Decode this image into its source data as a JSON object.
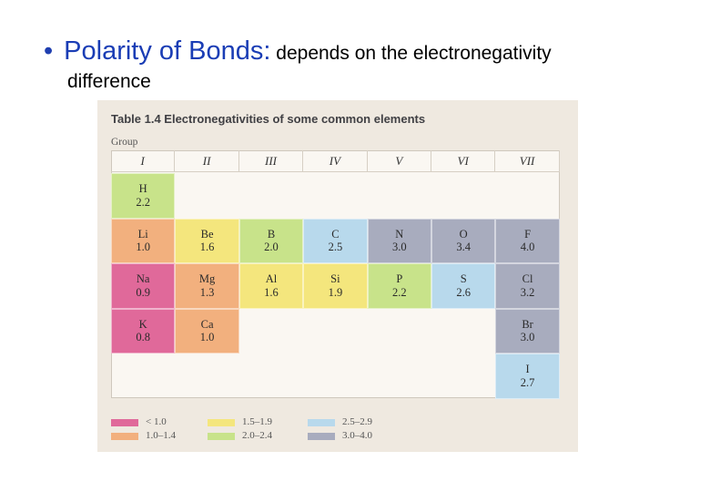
{
  "heading": {
    "bullet": "•",
    "term": "Polarity of Bonds:",
    "rest": " depends on the electronegativity",
    "continuation": "difference"
  },
  "table": {
    "title": "Table 1.4  Electronegativities of some common elements",
    "group_label": "Group",
    "groups": [
      "I",
      "II",
      "III",
      "IV",
      "V",
      "VI",
      "VII"
    ],
    "colors": {
      "lt1": "#e0699a",
      "r10_14": "#f2b07e",
      "r15_19": "#f4e67d",
      "r20_24": "#c8e38a",
      "r25_29": "#b8d9ec",
      "r30_40": "#a8acbe"
    },
    "cells": [
      {
        "row": 0,
        "col": 0,
        "symbol": "H",
        "value": "2.2",
        "range": "r20_24"
      },
      {
        "row": 1,
        "col": 0,
        "symbol": "Li",
        "value": "1.0",
        "range": "r10_14"
      },
      {
        "row": 1,
        "col": 1,
        "symbol": "Be",
        "value": "1.6",
        "range": "r15_19"
      },
      {
        "row": 1,
        "col": 2,
        "symbol": "B",
        "value": "2.0",
        "range": "r20_24"
      },
      {
        "row": 1,
        "col": 3,
        "symbol": "C",
        "value": "2.5",
        "range": "r25_29"
      },
      {
        "row": 1,
        "col": 4,
        "symbol": "N",
        "value": "3.0",
        "range": "r30_40"
      },
      {
        "row": 1,
        "col": 5,
        "symbol": "O",
        "value": "3.4",
        "range": "r30_40"
      },
      {
        "row": 1,
        "col": 6,
        "symbol": "F",
        "value": "4.0",
        "range": "r30_40"
      },
      {
        "row": 2,
        "col": 0,
        "symbol": "Na",
        "value": "0.9",
        "range": "lt1"
      },
      {
        "row": 2,
        "col": 1,
        "symbol": "Mg",
        "value": "1.3",
        "range": "r10_14"
      },
      {
        "row": 2,
        "col": 2,
        "symbol": "Al",
        "value": "1.6",
        "range": "r15_19"
      },
      {
        "row": 2,
        "col": 3,
        "symbol": "Si",
        "value": "1.9",
        "range": "r15_19"
      },
      {
        "row": 2,
        "col": 4,
        "symbol": "P",
        "value": "2.2",
        "range": "r20_24"
      },
      {
        "row": 2,
        "col": 5,
        "symbol": "S",
        "value": "2.6",
        "range": "r25_29"
      },
      {
        "row": 2,
        "col": 6,
        "symbol": "Cl",
        "value": "3.2",
        "range": "r30_40"
      },
      {
        "row": 3,
        "col": 0,
        "symbol": "K",
        "value": "0.8",
        "range": "lt1"
      },
      {
        "row": 3,
        "col": 1,
        "symbol": "Ca",
        "value": "1.0",
        "range": "r10_14"
      },
      {
        "row": 3,
        "col": 6,
        "symbol": "Br",
        "value": "3.0",
        "range": "r30_40"
      },
      {
        "row": 4,
        "col": 6,
        "symbol": "I",
        "value": "2.7",
        "range": "r25_29"
      }
    ],
    "legend": [
      {
        "range": "lt1",
        "label": "< 1.0"
      },
      {
        "range": "r10_14",
        "label": "1.0–1.4"
      },
      {
        "range": "r15_19",
        "label": "1.5–1.9"
      },
      {
        "range": "r20_24",
        "label": "2.0–2.4"
      },
      {
        "range": "r25_29",
        "label": "2.5–2.9"
      },
      {
        "range": "r30_40",
        "label": "3.0–4.0"
      }
    ]
  }
}
